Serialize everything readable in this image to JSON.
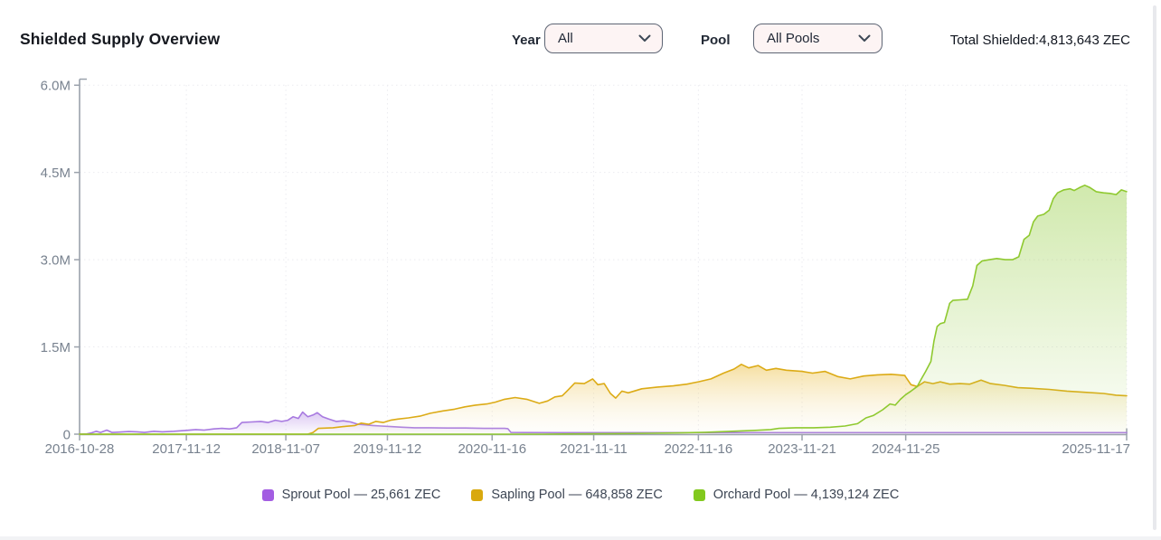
{
  "header": {
    "title": "Shielded Supply Overview",
    "year_label": "Year",
    "year_value": "All",
    "pool_label": "Pool",
    "pool_value": "All Pools",
    "total_label": "Total Shielded:",
    "total_value": "4,813,643 ZEC"
  },
  "legend": {
    "items": [
      {
        "name": "Sprout Pool",
        "label": "Sprout Pool — 25,661 ZEC",
        "color": "#a35de2"
      },
      {
        "name": "Sapling Pool",
        "label": "Sapling Pool — 648,858 ZEC",
        "color": "#d9a90f"
      },
      {
        "name": "Orchard Pool",
        "label": "Orchard Pool — 4,139,124 ZEC",
        "color": "#82c91e"
      }
    ]
  },
  "chart_data": {
    "type": "area",
    "title": "Shielded Supply Overview",
    "y_unit": "ZEC (millions)",
    "ylim": [
      0,
      6
    ],
    "grid": "dotted",
    "legend_position": "bottom",
    "y_ticks": [
      {
        "label": "0",
        "value": 0
      },
      {
        "label": "1.5M",
        "value": 1.5
      },
      {
        "label": "3.0M",
        "value": 3.0
      },
      {
        "label": "4.5M",
        "value": 4.5
      },
      {
        "label": "6.0M",
        "value": 6.0
      }
    ],
    "x_ticks": [
      {
        "label": "2016-10-28",
        "x01": 0
      },
      {
        "label": "2017-11-12",
        "x01": 0.102
      },
      {
        "label": "2018-11-07",
        "x01": 0.197
      },
      {
        "label": "2019-11-12",
        "x01": 0.294
      },
      {
        "label": "2020-11-16",
        "x01": 0.394
      },
      {
        "label": "2021-11-11",
        "x01": 0.491
      },
      {
        "label": "2022-11-16",
        "x01": 0.591
      },
      {
        "label": "2023-11-21",
        "x01": 0.69
      },
      {
        "label": "2024-11-25",
        "x01": 0.789
      },
      {
        "label": "2025-11-17",
        "x01": 1
      }
    ],
    "series": [
      {
        "name": "Sprout Pool",
        "current_zec": "25,661",
        "color": "#a87ae0",
        "fill_top": "rgba(168,122,224,0.40)",
        "fill_bottom": "rgba(168,122,224,0.02)",
        "points": [
          [
            0,
            0
          ],
          [
            0.007,
            0.005
          ],
          [
            0.011,
            0.02
          ],
          [
            0.016,
            0.05
          ],
          [
            0.02,
            0.03
          ],
          [
            0.026,
            0.07
          ],
          [
            0.031,
            0.03
          ],
          [
            0.038,
            0.035
          ],
          [
            0.047,
            0.045
          ],
          [
            0.055,
            0.04
          ],
          [
            0.062,
            0.03
          ],
          [
            0.071,
            0.05
          ],
          [
            0.079,
            0.04
          ],
          [
            0.09,
            0.05
          ],
          [
            0.102,
            0.065
          ],
          [
            0.111,
            0.08
          ],
          [
            0.119,
            0.07
          ],
          [
            0.128,
            0.09
          ],
          [
            0.136,
            0.1
          ],
          [
            0.143,
            0.09
          ],
          [
            0.15,
            0.11
          ],
          [
            0.155,
            0.2
          ],
          [
            0.164,
            0.21
          ],
          [
            0.173,
            0.22
          ],
          [
            0.18,
            0.2
          ],
          [
            0.187,
            0.24
          ],
          [
            0.193,
            0.22
          ],
          [
            0.199,
            0.24
          ],
          [
            0.204,
            0.3
          ],
          [
            0.209,
            0.27
          ],
          [
            0.213,
            0.38
          ],
          [
            0.218,
            0.3
          ],
          [
            0.223,
            0.33
          ],
          [
            0.227,
            0.37
          ],
          [
            0.232,
            0.3
          ],
          [
            0.238,
            0.26
          ],
          [
            0.245,
            0.22
          ],
          [
            0.252,
            0.23
          ],
          [
            0.259,
            0.21
          ],
          [
            0.266,
            0.17
          ],
          [
            0.273,
            0.16
          ],
          [
            0.28,
            0.15
          ],
          [
            0.288,
            0.14
          ],
          [
            0.297,
            0.13
          ],
          [
            0.308,
            0.12
          ],
          [
            0.32,
            0.11
          ],
          [
            0.334,
            0.11
          ],
          [
            0.351,
            0.105
          ],
          [
            0.369,
            0.105
          ],
          [
            0.386,
            0.1
          ],
          [
            0.406,
            0.1
          ],
          [
            0.409,
            0.095
          ],
          [
            0.412,
            0.03
          ],
          [
            0.425,
            0.028
          ],
          [
            0.459,
            0.027
          ],
          [
            0.529,
            0.027
          ],
          [
            0.615,
            0.027
          ],
          [
            0.701,
            0.026
          ],
          [
            0.788,
            0.026
          ],
          [
            0.874,
            0.026
          ],
          [
            0.943,
            0.026
          ],
          [
            1,
            0.026
          ]
        ]
      },
      {
        "name": "Sapling Pool",
        "current_zec": "648,858",
        "color": "#dcab16",
        "fill_top": "rgba(236,191,66,0.50)",
        "fill_bottom": "rgba(246,235,205,0.05)",
        "points": [
          [
            0,
            0
          ],
          [
            0.218,
            0
          ],
          [
            0.223,
            0.03
          ],
          [
            0.228,
            0.1
          ],
          [
            0.242,
            0.11
          ],
          [
            0.252,
            0.13
          ],
          [
            0.263,
            0.15
          ],
          [
            0.269,
            0.19
          ],
          [
            0.276,
            0.17
          ],
          [
            0.283,
            0.22
          ],
          [
            0.29,
            0.2
          ],
          [
            0.297,
            0.24
          ],
          [
            0.304,
            0.26
          ],
          [
            0.314,
            0.28
          ],
          [
            0.325,
            0.31
          ],
          [
            0.335,
            0.36
          ],
          [
            0.347,
            0.4
          ],
          [
            0.358,
            0.43
          ],
          [
            0.368,
            0.47
          ],
          [
            0.378,
            0.5
          ],
          [
            0.389,
            0.52
          ],
          [
            0.397,
            0.55
          ],
          [
            0.406,
            0.6
          ],
          [
            0.416,
            0.63
          ],
          [
            0.427,
            0.6
          ],
          [
            0.439,
            0.53
          ],
          [
            0.447,
            0.57
          ],
          [
            0.454,
            0.64
          ],
          [
            0.461,
            0.66
          ],
          [
            0.466,
            0.75
          ],
          [
            0.473,
            0.88
          ],
          [
            0.482,
            0.87
          ],
          [
            0.49,
            0.95
          ],
          [
            0.495,
            0.85
          ],
          [
            0.501,
            0.87
          ],
          [
            0.507,
            0.7
          ],
          [
            0.512,
            0.62
          ],
          [
            0.518,
            0.74
          ],
          [
            0.524,
            0.71
          ],
          [
            0.537,
            0.78
          ],
          [
            0.552,
            0.81
          ],
          [
            0.567,
            0.83
          ],
          [
            0.58,
            0.86
          ],
          [
            0.591,
            0.9
          ],
          [
            0.603,
            0.95
          ],
          [
            0.615,
            1.05
          ],
          [
            0.625,
            1.12
          ],
          [
            0.632,
            1.2
          ],
          [
            0.639,
            1.14
          ],
          [
            0.648,
            1.18
          ],
          [
            0.656,
            1.1
          ],
          [
            0.665,
            1.13
          ],
          [
            0.675,
            1.1
          ],
          [
            0.69,
            1.08
          ],
          [
            0.7,
            1.05
          ],
          [
            0.712,
            1.08
          ],
          [
            0.724,
            0.99
          ],
          [
            0.736,
            0.95
          ],
          [
            0.749,
            1.0
          ],
          [
            0.762,
            1.02
          ],
          [
            0.775,
            1.03
          ],
          [
            0.788,
            1.01
          ],
          [
            0.794,
            0.85
          ],
          [
            0.8,
            0.82
          ],
          [
            0.807,
            0.9
          ],
          [
            0.815,
            0.87
          ],
          [
            0.822,
            0.9
          ],
          [
            0.831,
            0.86
          ],
          [
            0.841,
            0.87
          ],
          [
            0.85,
            0.86
          ],
          [
            0.861,
            0.93
          ],
          [
            0.87,
            0.87
          ],
          [
            0.883,
            0.84
          ],
          [
            0.896,
            0.8
          ],
          [
            0.908,
            0.79
          ],
          [
            0.926,
            0.77
          ],
          [
            0.943,
            0.74
          ],
          [
            0.96,
            0.72
          ],
          [
            0.978,
            0.7
          ],
          [
            0.99,
            0.67
          ],
          [
            1,
            0.66
          ]
        ]
      },
      {
        "name": "Orchard Pool",
        "current_zec": "4,139,124",
        "color": "#8fc930",
        "fill_top": "rgba(158,209,84,0.48)",
        "fill_bottom": "rgba(158,209,84,0.03)",
        "points": [
          [
            0,
            0
          ],
          [
            0.442,
            0
          ],
          [
            0.477,
            0.004
          ],
          [
            0.511,
            0.01
          ],
          [
            0.546,
            0.016
          ],
          [
            0.572,
            0.022
          ],
          [
            0.598,
            0.032
          ],
          [
            0.623,
            0.05
          ],
          [
            0.645,
            0.065
          ],
          [
            0.66,
            0.08
          ],
          [
            0.668,
            0.1
          ],
          [
            0.684,
            0.11
          ],
          [
            0.701,
            0.11
          ],
          [
            0.717,
            0.12
          ],
          [
            0.731,
            0.14
          ],
          [
            0.743,
            0.18
          ],
          [
            0.751,
            0.28
          ],
          [
            0.758,
            0.32
          ],
          [
            0.767,
            0.42
          ],
          [
            0.774,
            0.52
          ],
          [
            0.779,
            0.5
          ],
          [
            0.784,
            0.6
          ],
          [
            0.789,
            0.68
          ],
          [
            0.794,
            0.74
          ],
          [
            0.8,
            0.82
          ],
          [
            0.804,
            0.95
          ],
          [
            0.808,
            1.08
          ],
          [
            0.813,
            1.25
          ],
          [
            0.816,
            1.6
          ],
          [
            0.819,
            1.85
          ],
          [
            0.822,
            1.9
          ],
          [
            0.826,
            1.92
          ],
          [
            0.828,
            2.05
          ],
          [
            0.831,
            2.25
          ],
          [
            0.834,
            2.3
          ],
          [
            0.841,
            2.31
          ],
          [
            0.848,
            2.32
          ],
          [
            0.853,
            2.55
          ],
          [
            0.857,
            2.9
          ],
          [
            0.862,
            2.98
          ],
          [
            0.869,
            3.0
          ],
          [
            0.876,
            3.02
          ],
          [
            0.884,
            3.0
          ],
          [
            0.891,
            3.0
          ],
          [
            0.897,
            3.05
          ],
          [
            0.902,
            3.35
          ],
          [
            0.907,
            3.42
          ],
          [
            0.911,
            3.65
          ],
          [
            0.915,
            3.75
          ],
          [
            0.921,
            3.78
          ],
          [
            0.926,
            3.85
          ],
          [
            0.93,
            4.05
          ],
          [
            0.934,
            4.15
          ],
          [
            0.94,
            4.2
          ],
          [
            0.946,
            4.22
          ],
          [
            0.95,
            4.19
          ],
          [
            0.955,
            4.24
          ],
          [
            0.96,
            4.28
          ],
          [
            0.965,
            4.24
          ],
          [
            0.971,
            4.17
          ],
          [
            0.978,
            4.15
          ],
          [
            0.984,
            4.14
          ],
          [
            0.99,
            4.12
          ],
          [
            0.995,
            4.2
          ],
          [
            1,
            4.17
          ]
        ]
      }
    ]
  }
}
